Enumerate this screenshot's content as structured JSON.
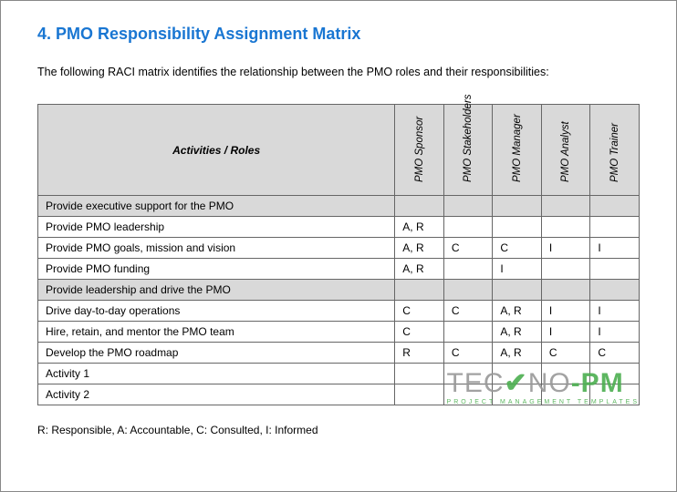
{
  "title": "4.  PMO Responsibility Assignment Matrix",
  "title_color": "#1976d2",
  "title_fontsize": 18,
  "intro": "The following RACI matrix identifies the relationship between the PMO roles and their responsibilities:",
  "intro_fontsize": 12.5,
  "table": {
    "header_bg": "#d9d9d9",
    "border_color": "#666666",
    "cell_fontsize": 12,
    "activities_header": "Activities / Roles",
    "role_headers": [
      "PMO Sponsor",
      "PMO Stakeholders",
      "PMO Manager",
      "PMO Analyst",
      "PMO Trainer"
    ],
    "rows": [
      {
        "type": "section",
        "label": "Provide executive support for the PMO",
        "cells": [
          "",
          "",
          "",
          "",
          ""
        ]
      },
      {
        "type": "data",
        "label": "Provide PMO leadership",
        "cells": [
          "A, R",
          "",
          "",
          "",
          ""
        ]
      },
      {
        "type": "data",
        "label": "Provide PMO goals, mission and vision",
        "cells": [
          "A, R",
          "C",
          "C",
          "I",
          "I"
        ]
      },
      {
        "type": "data",
        "label": "Provide PMO funding",
        "cells": [
          "A, R",
          "",
          "I",
          "",
          ""
        ]
      },
      {
        "type": "section",
        "label": "Provide leadership and drive the PMO",
        "cells": [
          "",
          "",
          "",
          "",
          ""
        ]
      },
      {
        "type": "data",
        "label": "Drive day-to-day operations",
        "cells": [
          "C",
          "C",
          "A, R",
          "I",
          "I"
        ]
      },
      {
        "type": "data",
        "label": "Hire, retain, and mentor the PMO team",
        "cells": [
          "C",
          "",
          "A, R",
          "I",
          "I"
        ]
      },
      {
        "type": "data",
        "label": "Develop the PMO roadmap",
        "cells": [
          "R",
          "C",
          "A, R",
          "C",
          "C"
        ]
      },
      {
        "type": "data",
        "label": "Activity 1",
        "cells": [
          "",
          "",
          "",
          "",
          ""
        ]
      },
      {
        "type": "data",
        "label": "Activity 2",
        "cells": [
          "",
          "",
          "",
          "",
          ""
        ]
      }
    ]
  },
  "legend": "R: Responsible, A: Accountable, C: Consulted, I: Informed",
  "watermark": {
    "brand_pre": "TEC",
    "brand_check": "✔",
    "brand_mid": "NO",
    "brand_suf": "-PM",
    "tag": "PROJECT MANAGEMENT TEMPLATES",
    "gray": "#999999",
    "green": "#4caf50"
  }
}
